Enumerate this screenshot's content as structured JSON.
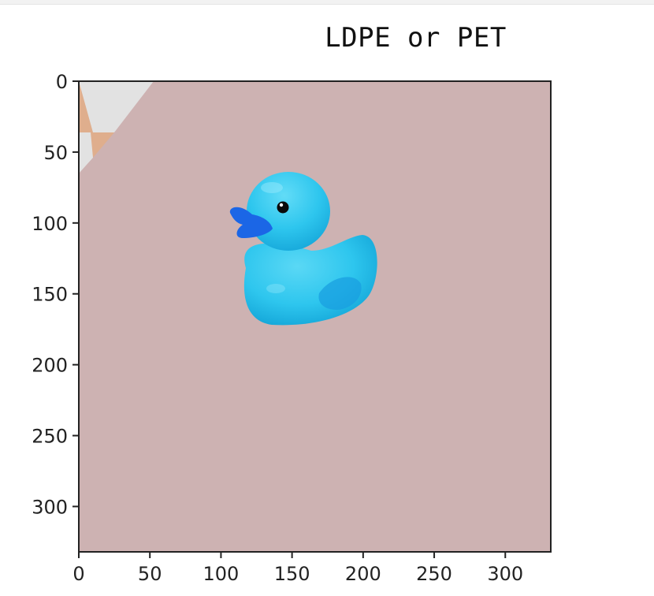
{
  "chart_data": {
    "type": "image",
    "title": "LDPE or PET",
    "xlabel": "",
    "ylabel": "",
    "xlim": [
      0,
      332
    ],
    "ylim": [
      332,
      0
    ],
    "x_ticks": [
      0,
      50,
      100,
      150,
      200,
      250,
      300
    ],
    "y_ticks": [
      0,
      50,
      100,
      150,
      200,
      250,
      300
    ],
    "grid": false,
    "image_content": {
      "subject": "blue rubber duck",
      "background_color": "#cdb2b2",
      "corner_colors": [
        "#e2e2e2",
        "#dfae8d"
      ],
      "duck_colors": {
        "body": "#2ec6ee",
        "beak": "#1b66e6",
        "eye": "#0a0a0a"
      }
    }
  }
}
